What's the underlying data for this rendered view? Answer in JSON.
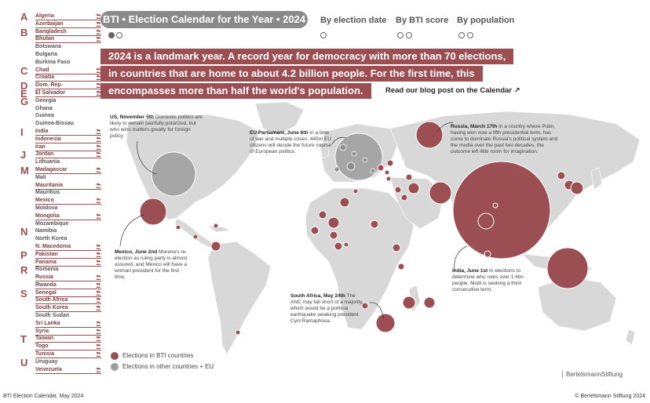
{
  "header": {
    "title": "BTI • Election Calendar for the Year • 2024",
    "sort_tabs": [
      "By election date",
      "By BTI score",
      "By population"
    ]
  },
  "intro": {
    "lines": [
      "2024 is a landmark year. A record year for democracy with more than 70 elections,",
      "in countries that are home to about 4.2 billion people. For the first time, this",
      "encompasses more than half the world's population."
    ],
    "blog_link": "Read our blog post on the Calendar ↗"
  },
  "sidebar": {
    "rows": [
      {
        "letter": "A",
        "name": "Algeria",
        "bti": true
      },
      {
        "letter": "",
        "name": "Azerbaijan",
        "bti": true
      },
      {
        "letter": "B",
        "name": "Bangladesh",
        "bti": true
      },
      {
        "letter": "",
        "name": "Bhutan",
        "bti": true
      },
      {
        "letter": "",
        "name": "Botswana",
        "bti": false
      },
      {
        "letter": "",
        "name": "Bulgaria",
        "bti": false
      },
      {
        "letter": "",
        "name": "Burkina Faso",
        "bti": false
      },
      {
        "letter": "C",
        "name": "Chad",
        "bti": true
      },
      {
        "letter": "",
        "name": "Croatia",
        "bti": true
      },
      {
        "letter": "D",
        "name": "Dom. Rep.",
        "bti": true
      },
      {
        "letter": "E",
        "name": "El Salvador",
        "bti": true
      },
      {
        "letter": "G",
        "name": "Georgia",
        "bti": false
      },
      {
        "letter": "",
        "name": "Ghana",
        "bti": false
      },
      {
        "letter": "",
        "name": "Guinea",
        "bti": false
      },
      {
        "letter": "",
        "name": "Guinea-Bissau",
        "bti": false
      },
      {
        "letter": "I",
        "name": "India",
        "bti": true
      },
      {
        "letter": "",
        "name": "Indonesia",
        "bti": true
      },
      {
        "letter": "",
        "name": "Iran",
        "bti": true
      },
      {
        "letter": "J",
        "name": "Jordan",
        "bti": true
      },
      {
        "letter": "",
        "name": "Lithuania",
        "bti": false
      },
      {
        "letter": "M",
        "name": "Madagascar",
        "bti": true
      },
      {
        "letter": "",
        "name": "Mali",
        "bti": false
      },
      {
        "letter": "",
        "name": "Mauritania",
        "bti": true
      },
      {
        "letter": "",
        "name": "Mauritius",
        "bti": false
      },
      {
        "letter": "",
        "name": "Mexico",
        "bti": true
      },
      {
        "letter": "",
        "name": "Moldova",
        "bti": false
      },
      {
        "letter": "",
        "name": "Mongolia",
        "bti": true
      },
      {
        "letter": "",
        "name": "Mozambique",
        "bti": false
      },
      {
        "letter": "N",
        "name": "Namibia",
        "bti": false
      },
      {
        "letter": "",
        "name": "North Korea",
        "bti": false
      },
      {
        "letter": "",
        "name": "N. Macedonia",
        "bti": true
      },
      {
        "letter": "P",
        "name": "Pakistan",
        "bti": true
      },
      {
        "letter": "",
        "name": "Panama",
        "bti": true
      },
      {
        "letter": "R",
        "name": "Romania",
        "bti": false
      },
      {
        "letter": "",
        "name": "Russia",
        "bti": true
      },
      {
        "letter": "",
        "name": "Rwanda",
        "bti": true
      },
      {
        "letter": "S",
        "name": "Senegal",
        "bti": true
      },
      {
        "letter": "",
        "name": "South Africa",
        "bti": true
      },
      {
        "letter": "",
        "name": "South Korea",
        "bti": true
      },
      {
        "letter": "",
        "name": "South Sudan",
        "bti": false
      },
      {
        "letter": "",
        "name": "Sri Lanka",
        "bti": true
      },
      {
        "letter": "",
        "name": "Syria",
        "bti": true
      },
      {
        "letter": "T",
        "name": "Taiwan",
        "bti": true
      },
      {
        "letter": "",
        "name": "Togo",
        "bti": true
      },
      {
        "letter": "",
        "name": "Tunisia",
        "bti": true
      },
      {
        "letter": "U",
        "name": "Uruguay",
        "bti": false
      },
      {
        "letter": "",
        "name": "Venezuela",
        "bti": true
      }
    ]
  },
  "annotations": {
    "us": {
      "head": "US, November 5th",
      "body": "Domestic politics are likely to remain painfully polarized, but who wins matters greatly for foreign policy."
    },
    "eu": {
      "head": "EU Parliament, June 6th",
      "body": "In a time of war and multiple crises, 445m EU citizens will decide the future course of European politics."
    },
    "russia": {
      "head": "Russia, March 17th",
      "body": "In a country where Putin, having won now a fifth presidential term, has come to dominate Russia's political system and the media over the past two decades, the outcome left little room for imagination."
    },
    "mexico": {
      "head": "Mexico, June 2nd",
      "body": "Morena's re-election as ruling party is almost assured, and Mexico will have a woman president for the first time."
    },
    "india": {
      "head": "India, June 1st",
      "body": "In elections to determine who rules over 1.4bn people, Modi is seeking a third consecutive term."
    },
    "south_africa": {
      "head": "South Africa, May 24th",
      "body": "The ANC may fall short of a majority, which would be a political earthquake weaking president Cyril Ramaphosa."
    }
  },
  "legend": {
    "bti": "Elections in BTI countries",
    "other": "Elections in other countries + EU"
  },
  "colors": {
    "bti": "#9b4f52",
    "other": "#9e9e9e",
    "land": "#d8d8d8"
  },
  "logo": "BertelsmannStiftung",
  "footer": {
    "left": "BTI Election Calendar, May 2024",
    "right": "© Bertelsmann Stiftung 2024"
  }
}
